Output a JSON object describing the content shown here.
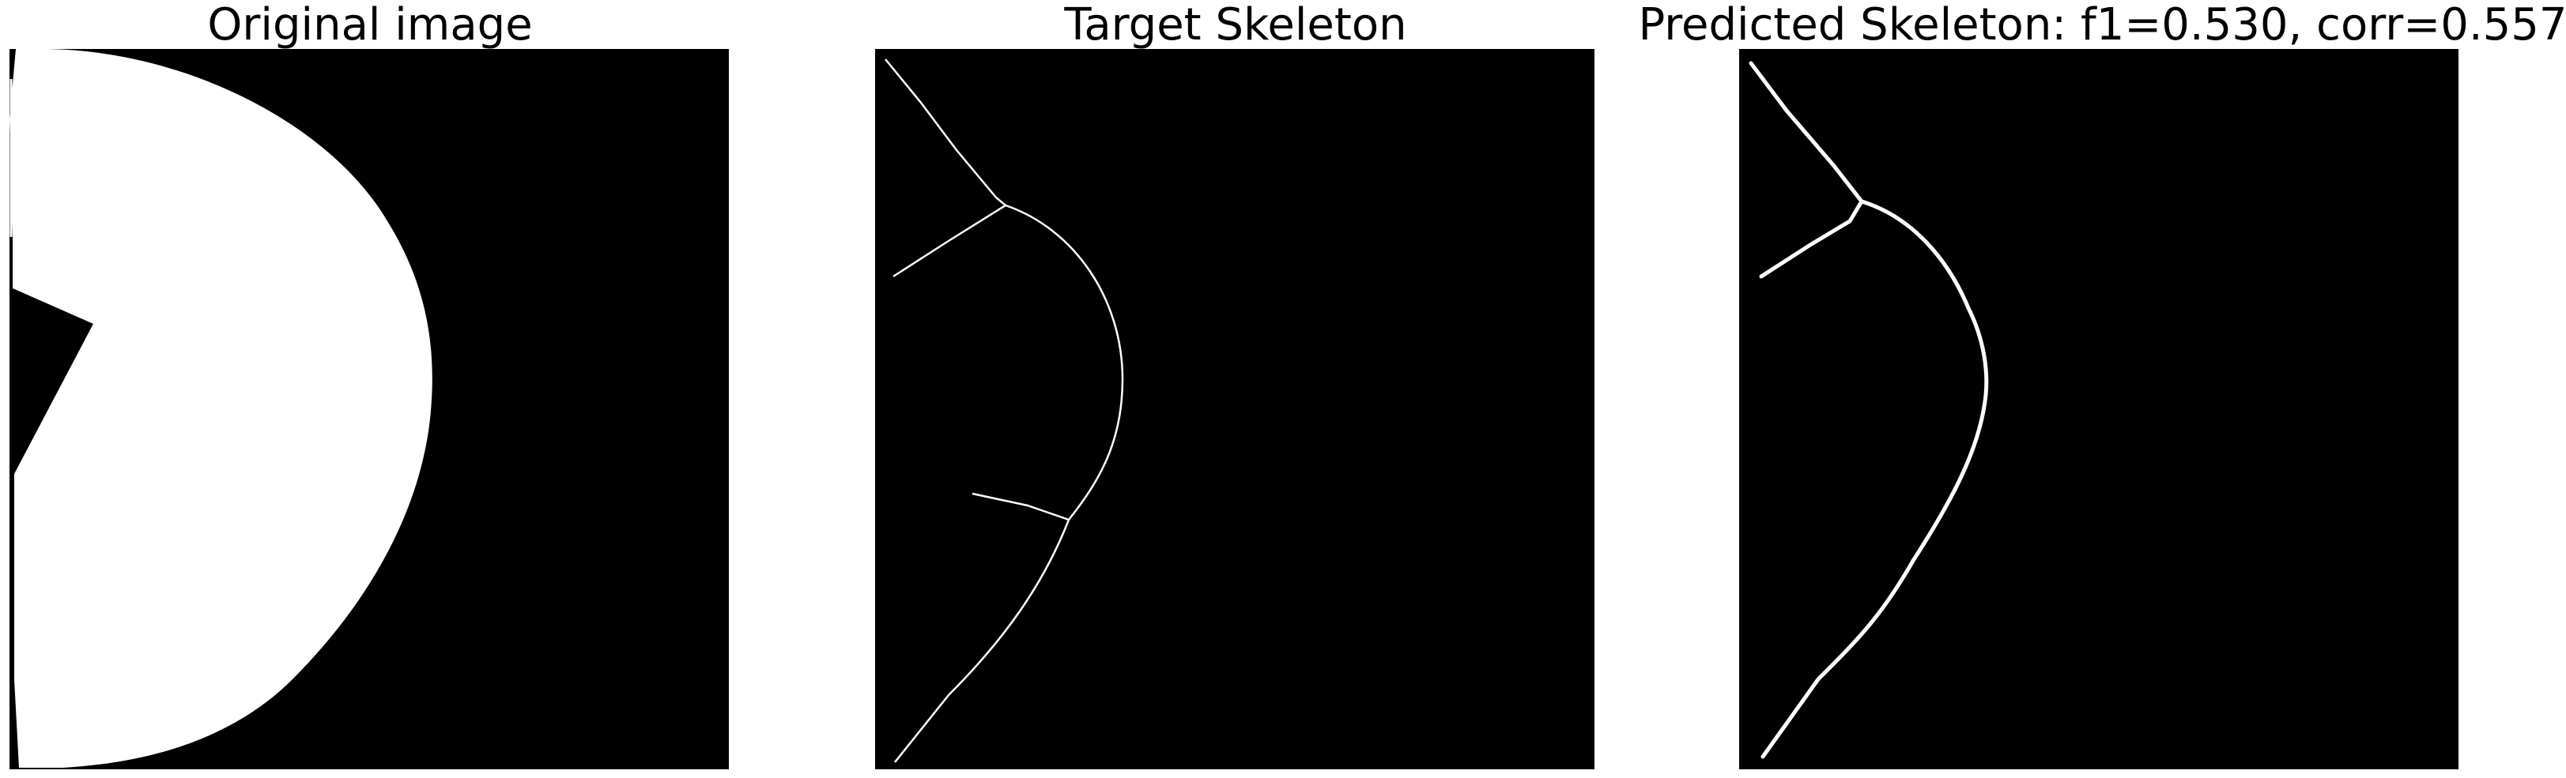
{
  "figure": {
    "background_color": "#ffffff",
    "panels": [
      {
        "title": "Original image",
        "content": "binary disc image: white partial disc with a black notch on a black background"
      },
      {
        "title": "Target Skeleton",
        "content": "thin white skeleton lines on black"
      },
      {
        "title": "Predicted Skeleton: f1=0.530, corr=0.557",
        "content": "thicker white predicted skeleton lines on black"
      }
    ],
    "colors": {
      "image_background": "#000000",
      "foreground": "#ffffff",
      "title_text": "#000000"
    }
  }
}
